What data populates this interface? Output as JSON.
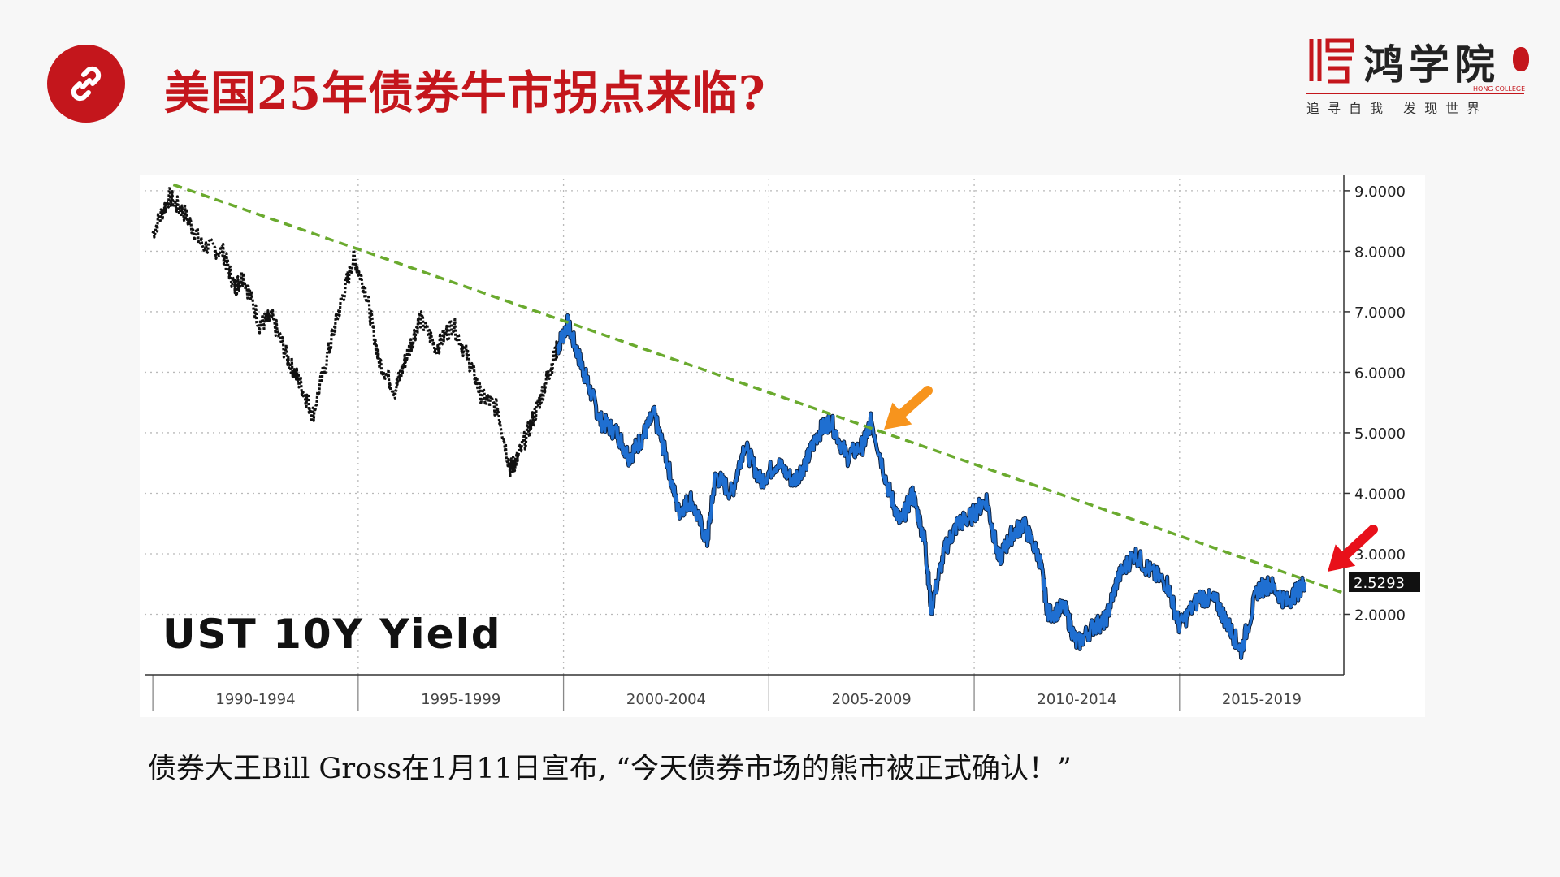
{
  "page": {
    "title": "美国25年债券牛市拐点来临?",
    "caption": "债券大王Bill Gross在1月11日宣布, “今天债券市场的熊市被正式确认！”"
  },
  "logo": {
    "name": "鸿学院",
    "sub": "HONG COLLEGE",
    "slogan": "追寻自我 发现世界"
  },
  "colors": {
    "accent": "#c4161c",
    "trend": "#6aaa2e",
    "series_old": "#111111",
    "series_new": "#1f6fd1",
    "arrow_orange": "#f7941d",
    "arrow_red": "#e8101a"
  },
  "icons": {
    "title_icon": "link-icon"
  },
  "chart_data": {
    "type": "line",
    "title": "UST 10Y Yield",
    "x_categories": [
      "1990-1994",
      "1995-1999",
      "2000-2004",
      "2005-2009",
      "2010-2014",
      "2015-2019"
    ],
    "y_ticks": [
      "9.0000",
      "8.0000",
      "7.0000",
      "6.0000",
      "5.0000",
      "4.0000",
      "3.0000",
      "2.0000"
    ],
    "ylim": [
      1.0,
      9.2
    ],
    "xlim": [
      1989.8,
      2019.0
    ],
    "last_value_label": "2.5293",
    "grid": true,
    "series": [
      {
        "values": [
          [
            1990.0,
            8.3
          ],
          [
            1990.4,
            8.9
          ],
          [
            1990.8,
            8.6
          ],
          [
            1991.2,
            8.1
          ],
          [
            1991.7,
            8.0
          ],
          [
            1992.0,
            7.4
          ],
          [
            1992.2,
            7.6
          ],
          [
            1992.6,
            6.8
          ],
          [
            1992.9,
            6.9
          ],
          [
            1993.3,
            6.2
          ],
          [
            1993.6,
            5.8
          ],
          [
            1993.9,
            5.3
          ],
          [
            1994.3,
            6.4
          ],
          [
            1994.6,
            7.2
          ],
          [
            1994.9,
            7.9
          ],
          [
            1995.2,
            7.3
          ],
          [
            1995.5,
            6.2
          ],
          [
            1995.9,
            5.7
          ],
          [
            1996.2,
            6.3
          ],
          [
            1996.5,
            6.9
          ],
          [
            1996.9,
            6.4
          ],
          [
            1997.3,
            6.8
          ],
          [
            1997.7,
            6.2
          ],
          [
            1998.0,
            5.6
          ],
          [
            1998.4,
            5.4
          ],
          [
            1998.7,
            4.4
          ],
          [
            1998.9,
            4.6
          ],
          [
            1999.3,
            5.3
          ],
          [
            1999.6,
            5.9
          ],
          [
            1999.85,
            6.4
          ]
        ]
      },
      {
        "values": [
          [
            1999.85,
            6.4
          ],
          [
            2000.1,
            6.8
          ],
          [
            2000.4,
            6.2
          ],
          [
            2000.6,
            5.8
          ],
          [
            2000.9,
            5.2
          ],
          [
            2001.3,
            5.0
          ],
          [
            2001.6,
            4.6
          ],
          [
            2001.9,
            4.9
          ],
          [
            2002.2,
            5.3
          ],
          [
            2002.5,
            4.6
          ],
          [
            2002.8,
            3.7
          ],
          [
            2003.1,
            3.9
          ],
          [
            2003.5,
            3.2
          ],
          [
            2003.7,
            4.3
          ],
          [
            2004.1,
            4.0
          ],
          [
            2004.4,
            4.8
          ],
          [
            2004.8,
            4.2
          ],
          [
            2005.2,
            4.5
          ],
          [
            2005.6,
            4.2
          ],
          [
            2005.9,
            4.5
          ],
          [
            2006.2,
            5.0
          ],
          [
            2006.5,
            5.2
          ],
          [
            2006.9,
            4.6
          ],
          [
            2007.3,
            4.8
          ],
          [
            2007.5,
            5.2
          ],
          [
            2007.9,
            4.1
          ],
          [
            2008.2,
            3.5
          ],
          [
            2008.5,
            4.0
          ],
          [
            2008.8,
            3.2
          ],
          [
            2008.95,
            2.1
          ],
          [
            2009.3,
            3.1
          ],
          [
            2009.6,
            3.5
          ],
          [
            2009.9,
            3.6
          ],
          [
            2010.3,
            3.9
          ],
          [
            2010.6,
            2.9
          ],
          [
            2010.9,
            3.3
          ],
          [
            2011.2,
            3.5
          ],
          [
            2011.6,
            2.9
          ],
          [
            2011.8,
            2.0
          ],
          [
            2012.2,
            2.1
          ],
          [
            2012.5,
            1.5
          ],
          [
            2012.9,
            1.8
          ],
          [
            2013.2,
            1.9
          ],
          [
            2013.5,
            2.6
          ],
          [
            2013.9,
            3.0
          ],
          [
            2014.3,
            2.7
          ],
          [
            2014.7,
            2.5
          ],
          [
            2015.0,
            1.8
          ],
          [
            2015.5,
            2.3
          ],
          [
            2015.9,
            2.2
          ],
          [
            2016.2,
            1.8
          ],
          [
            2016.5,
            1.4
          ],
          [
            2016.9,
            2.4
          ],
          [
            2017.2,
            2.5
          ],
          [
            2017.6,
            2.2
          ],
          [
            2017.9,
            2.4
          ],
          [
            2018.05,
            2.53
          ]
        ]
      }
    ],
    "trendline": [
      [
        1990.5,
        9.1
      ],
      [
        2019.0,
        2.35
      ]
    ]
  }
}
